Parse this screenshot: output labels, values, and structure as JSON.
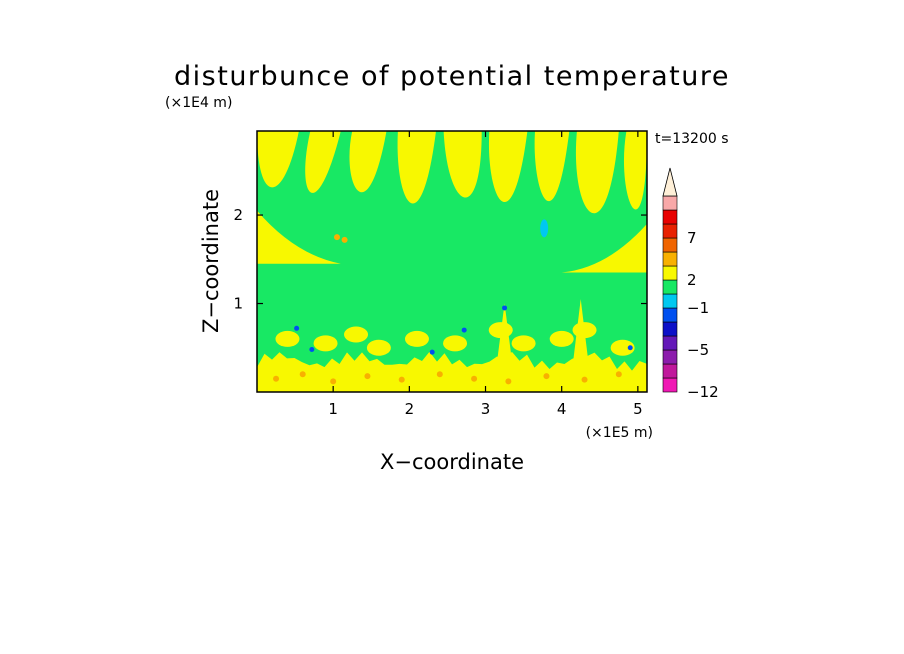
{
  "chart_data": {
    "type": "heatmap",
    "title": "disturbunce of potential temperature",
    "xlabel": "X−coordinate",
    "ylabel": "Z−coordinate",
    "x_unit": "(×1E5 m)",
    "y_unit": "(×1E4 m)",
    "time_label": "t=13200 s",
    "xlim": [
      0,
      5.12
    ],
    "ylim": [
      0,
      2.95
    ],
    "x_ticks": [
      {
        "value": 1,
        "label": "1"
      },
      {
        "value": 2,
        "label": "2"
      },
      {
        "value": 3,
        "label": "3"
      },
      {
        "value": 4,
        "label": "4"
      },
      {
        "value": 5,
        "label": "5"
      }
    ],
    "y_ticks": [
      {
        "value": 1,
        "label": "1"
      },
      {
        "value": 2,
        "label": "2"
      }
    ],
    "colorbar": {
      "levels": [
        {
          "color": "#f018b4",
          "label": "−12"
        },
        {
          "color": "#c0189c",
          "label": ""
        },
        {
          "color": "#8c1cac",
          "label": ""
        },
        {
          "color": "#6418b8",
          "label": "−5"
        },
        {
          "color": "#0c10c8",
          "label": ""
        },
        {
          "color": "#0050f0",
          "label": ""
        },
        {
          "color": "#00c8f0",
          "label": "−1"
        },
        {
          "color": "#18e864",
          "label": ""
        },
        {
          "color": "#f8f800",
          "label": "2"
        },
        {
          "color": "#f8b000",
          "label": ""
        },
        {
          "color": "#f06400",
          "label": ""
        },
        {
          "color": "#e82000",
          "label": "7"
        },
        {
          "color": "#e80000",
          "label": ""
        },
        {
          "color": "#f8a8a8",
          "label": ""
        }
      ],
      "extend_top_color": "#fff0d8"
    },
    "background_level_color": "#18e864",
    "features": {
      "upper_positive_bands_color": "#f8f800",
      "near_surface_band_color": "#f8f800",
      "spot_color": "#f8b000",
      "cold_spot_color": "#0050f0",
      "cold_spot2_color": "#00c8f0"
    }
  }
}
